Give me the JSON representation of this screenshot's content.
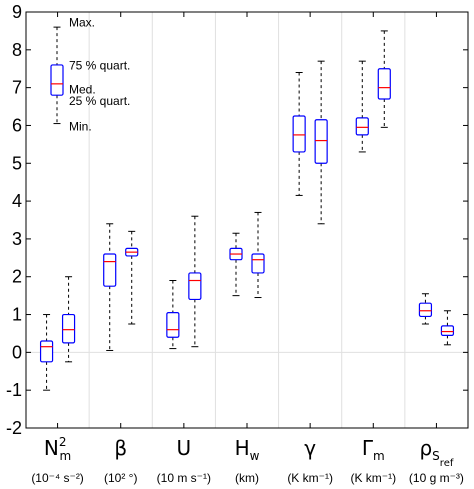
{
  "chart_data": {
    "type": "boxplot",
    "title": "",
    "xlabel": "",
    "ylabel": "",
    "ylim": [
      -2,
      9
    ],
    "yticks": [
      "-2",
      "-1",
      "0",
      "1",
      "2",
      "3",
      "4",
      "5",
      "6",
      "7",
      "8",
      "9"
    ],
    "grid": "vertical separators and zero line",
    "categories": [
      {
        "label": "N",
        "sup": "2",
        "sub": "m",
        "unit": "(10⁻⁴ s⁻²)"
      },
      {
        "label": "β",
        "sup": "",
        "sub": "",
        "unit": "(10² °)"
      },
      {
        "label": "U",
        "sup": "",
        "sub": "",
        "unit": "(10 m s⁻¹)"
      },
      {
        "label": "H",
        "sup": "",
        "sub": "w",
        "unit": "(km)"
      },
      {
        "label": "γ",
        "sup": "",
        "sub": "",
        "unit": "(K km⁻¹)"
      },
      {
        "label": "Γ",
        "sup": "",
        "sub": "m",
        "unit": "(K km⁻¹)"
      },
      {
        "label": "ρ",
        "sup": "",
        "sub": "S",
        "subsub": "ref",
        "unit": "(10 g m⁻³)"
      }
    ],
    "boxes": [
      {
        "category": 0,
        "min": -1.0,
        "q1": -0.25,
        "median": 0.15,
        "q3": 0.3,
        "max": 1.0
      },
      {
        "category": 0,
        "min": -0.25,
        "q1": 0.25,
        "median": 0.6,
        "q3": 1.0,
        "max": 2.0
      },
      {
        "category": 1,
        "min": 0.05,
        "q1": 1.75,
        "median": 2.4,
        "q3": 2.6,
        "max": 3.4
      },
      {
        "category": 1,
        "min": 0.75,
        "q1": 2.55,
        "median": 2.65,
        "q3": 2.75,
        "max": 3.2
      },
      {
        "category": 2,
        "min": 0.1,
        "q1": 0.4,
        "median": 0.6,
        "q3": 1.05,
        "max": 1.9
      },
      {
        "category": 2,
        "min": 0.15,
        "q1": 1.4,
        "median": 1.9,
        "q3": 2.1,
        "max": 3.6
      },
      {
        "category": 3,
        "min": 1.5,
        "q1": 2.45,
        "median": 2.6,
        "q3": 2.75,
        "max": 3.15
      },
      {
        "category": 3,
        "min": 1.45,
        "q1": 2.1,
        "median": 2.45,
        "q3": 2.6,
        "max": 3.7
      },
      {
        "category": 4,
        "min": 4.15,
        "q1": 5.3,
        "median": 5.75,
        "q3": 6.25,
        "max": 7.4
      },
      {
        "category": 4,
        "min": 3.4,
        "q1": 5.0,
        "median": 5.6,
        "q3": 6.15,
        "max": 7.7
      },
      {
        "category": 5,
        "min": 5.3,
        "q1": 5.75,
        "median": 5.95,
        "q3": 6.2,
        "max": 7.7
      },
      {
        "category": 5,
        "min": 5.95,
        "q1": 6.7,
        "median": 7.0,
        "q3": 7.5,
        "max": 8.5
      },
      {
        "category": 6,
        "min": 0.75,
        "q1": 0.95,
        "median": 1.1,
        "q3": 1.3,
        "max": 1.55
      },
      {
        "category": 6,
        "min": 0.2,
        "q1": 0.45,
        "median": 0.55,
        "q3": 0.7,
        "max": 1.1
      }
    ],
    "legend": {
      "box": {
        "min": 6.05,
        "q1": 6.8,
        "median": 7.1,
        "q3": 7.6,
        "max": 8.6
      },
      "labels": {
        "max": "Max.",
        "q3": "75 % quart.",
        "median": "Med.",
        "q1": "25 % quart.",
        "min": "Min."
      }
    },
    "colors": {
      "box": "#0000ff",
      "median": "#ff0000",
      "whisker": "#000000",
      "grid": "#e0e0e0"
    }
  }
}
